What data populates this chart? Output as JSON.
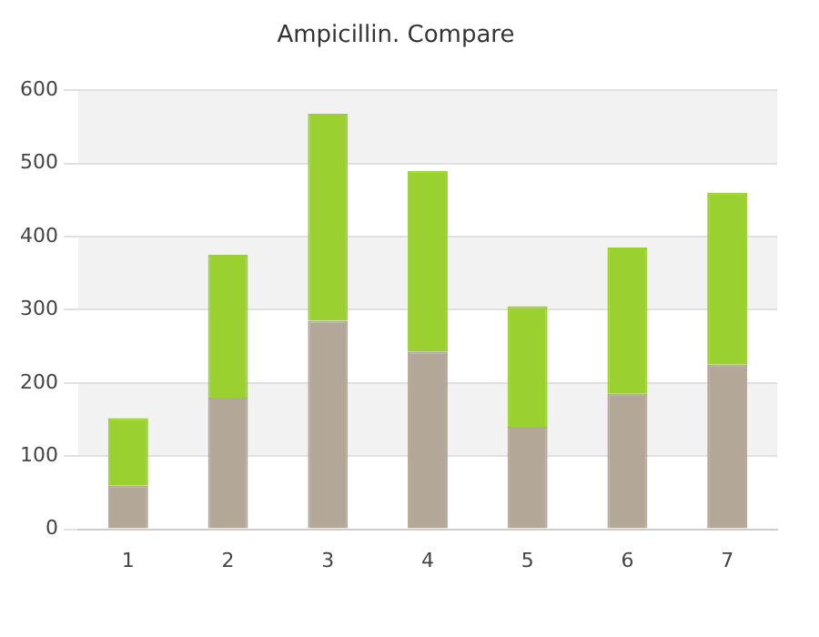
{
  "chart_data": {
    "type": "bar",
    "title": "Ampicillin. Compare",
    "categories": [
      "1",
      "2",
      "3",
      "4",
      "5",
      "6",
      "7"
    ],
    "stacked": true,
    "series": [
      {
        "color": "#b3a898",
        "values": [
          60,
          180,
          285,
          243,
          140,
          185,
          225
        ]
      },
      {
        "color": "#9ad030",
        "values": [
          92,
          195,
          283,
          247,
          165,
          200,
          235
        ]
      }
    ],
    "ylim": [
      0,
      600
    ],
    "yticks": [
      0,
      100,
      200,
      300,
      400,
      500,
      600
    ],
    "grid": "y"
  }
}
